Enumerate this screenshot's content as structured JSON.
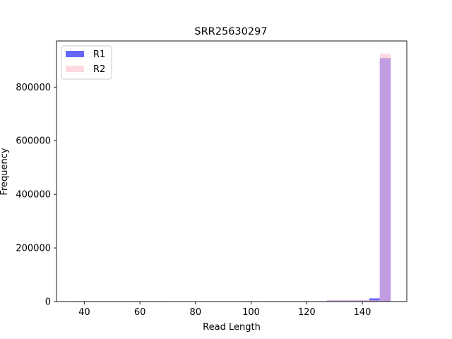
{
  "chart_data": {
    "type": "bar",
    "title": "SRR25630297",
    "xlabel": "Read Length",
    "ylabel": "Frequency",
    "xlim": [
      30,
      156
    ],
    "ylim": [
      0,
      972000
    ],
    "xticks": [
      40,
      60,
      80,
      100,
      120,
      140
    ],
    "yticks": [
      0,
      200000,
      400000,
      600000,
      800000
    ],
    "bin_width": 3.833,
    "legend": "top-left",
    "grid": false,
    "series": [
      {
        "name": "R1",
        "color": "#0000ff",
        "alpha": 0.6,
        "bins": [
          {
            "x0": 35.0,
            "x1": 38.8,
            "value": 1500
          },
          {
            "x0": 38.8,
            "x1": 42.7,
            "value": 1500
          },
          {
            "x0": 42.7,
            "x1": 46.5,
            "value": 1500
          },
          {
            "x0": 46.5,
            "x1": 50.3,
            "value": 1500
          },
          {
            "x0": 50.3,
            "x1": 54.2,
            "value": 1500
          },
          {
            "x0": 54.2,
            "x1": 58.0,
            "value": 1500
          },
          {
            "x0": 58.0,
            "x1": 61.8,
            "value": 1500
          },
          {
            "x0": 61.8,
            "x1": 65.7,
            "value": 1500
          },
          {
            "x0": 65.7,
            "x1": 69.5,
            "value": 1500
          },
          {
            "x0": 96.5,
            "x1": 100.3,
            "value": 1500
          },
          {
            "x0": 104.2,
            "x1": 108.0,
            "value": 1500
          },
          {
            "x0": 108.0,
            "x1": 111.8,
            "value": 1500
          },
          {
            "x0": 111.8,
            "x1": 115.7,
            "value": 1500
          },
          {
            "x0": 115.7,
            "x1": 119.5,
            "value": 1500
          },
          {
            "x0": 119.5,
            "x1": 123.3,
            "value": 1500
          },
          {
            "x0": 123.3,
            "x1": 127.2,
            "value": 1500
          },
          {
            "x0": 127.2,
            "x1": 131.0,
            "value": 4000
          },
          {
            "x0": 131.0,
            "x1": 134.8,
            "value": 4000
          },
          {
            "x0": 134.8,
            "x1": 138.7,
            "value": 4000
          },
          {
            "x0": 138.7,
            "x1": 142.5,
            "value": 4000
          },
          {
            "x0": 142.5,
            "x1": 146.3,
            "value": 12000
          },
          {
            "x0": 146.3,
            "x1": 150.2,
            "value": 908000
          }
        ]
      },
      {
        "name": "R2",
        "color": "#ffc0cb",
        "alpha": 0.6,
        "bins": [
          {
            "x0": 35.0,
            "x1": 38.8,
            "value": 800
          },
          {
            "x0": 38.8,
            "x1": 42.7,
            "value": 800
          },
          {
            "x0": 42.7,
            "x1": 46.5,
            "value": 800
          },
          {
            "x0": 46.5,
            "x1": 50.3,
            "value": 800
          },
          {
            "x0": 50.3,
            "x1": 54.2,
            "value": 800
          },
          {
            "x0": 54.2,
            "x1": 58.0,
            "value": 800
          },
          {
            "x0": 58.0,
            "x1": 61.8,
            "value": 800
          },
          {
            "x0": 61.8,
            "x1": 65.7,
            "value": 800
          },
          {
            "x0": 65.7,
            "x1": 69.5,
            "value": 800
          },
          {
            "x0": 96.5,
            "x1": 100.3,
            "value": 800
          },
          {
            "x0": 104.2,
            "x1": 108.0,
            "value": 800
          },
          {
            "x0": 108.0,
            "x1": 111.8,
            "value": 800
          },
          {
            "x0": 111.8,
            "x1": 115.7,
            "value": 800
          },
          {
            "x0": 115.7,
            "x1": 119.5,
            "value": 800
          },
          {
            "x0": 119.5,
            "x1": 123.3,
            "value": 800
          },
          {
            "x0": 123.3,
            "x1": 127.2,
            "value": 800
          },
          {
            "x0": 127.2,
            "x1": 131.0,
            "value": 5000
          },
          {
            "x0": 131.0,
            "x1": 134.8,
            "value": 5000
          },
          {
            "x0": 134.8,
            "x1": 138.7,
            "value": 5000
          },
          {
            "x0": 138.7,
            "x1": 142.5,
            "value": 5000
          },
          {
            "x0": 142.5,
            "x1": 146.3,
            "value": 5000
          },
          {
            "x0": 146.3,
            "x1": 150.2,
            "value": 925000
          }
        ]
      }
    ]
  }
}
